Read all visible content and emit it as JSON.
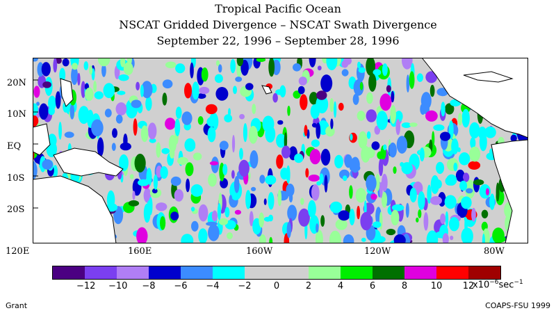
{
  "title": {
    "line1": "Tropical Pacific Ocean",
    "line2": "NSCAT Gridded Divergence – NSCAT Swath Divergence",
    "line3": "September 22, 1996 – September 28, 1996"
  },
  "map": {
    "lat_labels": [
      "20N",
      "10N",
      "EQ",
      "10S",
      "20S"
    ],
    "lon_labels": [
      "120E",
      "160E",
      "160W",
      "120W",
      "80W"
    ]
  },
  "colorbar": {
    "colors": [
      "#4b0082",
      "#7b3ff0",
      "#b07ef5",
      "#0000cd",
      "#3c8cff",
      "#00ffff",
      "#d0d0d0",
      "#d0d0d0",
      "#98ff98",
      "#00ee00",
      "#007000",
      "#e000e0",
      "#ff0000",
      "#a00000"
    ],
    "tick_labels": [
      "−12",
      "−10",
      "−8",
      "−6",
      "−4",
      "−2",
      "0",
      "2",
      "4",
      "6",
      "8",
      "10",
      "12"
    ],
    "units": "x10",
    "units_exp": "−6",
    "units_tail": "sec",
    "units_tail_exp": "−1"
  },
  "footer": {
    "left": "Grant",
    "right": "COAPS-FSU 1999"
  }
}
